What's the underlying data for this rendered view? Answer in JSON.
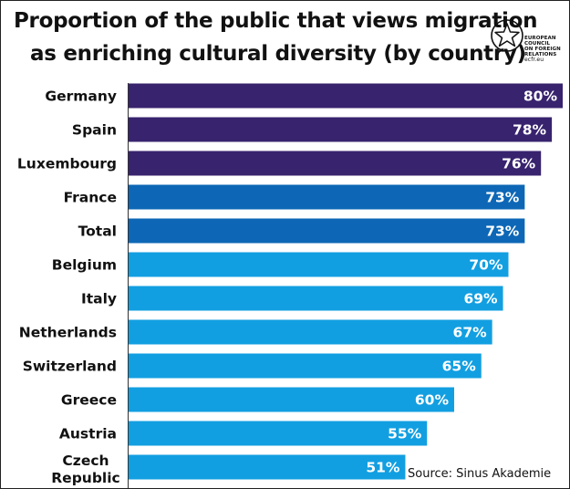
{
  "header": {
    "title_line1": "Proportion of the public that views migration",
    "title_line2": "as enriching cultural diversity (by country)"
  },
  "logo": {
    "icon": "star-circle-icon",
    "line1": "EUROPEAN",
    "line2": "COUNCIL",
    "line3": "ON FOREIGN",
    "line4": "RELATIONS",
    "site": "ecfr.eu"
  },
  "source": "Source: Sinus Akademie",
  "colors": {
    "dark": "#38236e",
    "mid": "#0d67b6",
    "light": "#129fe1"
  },
  "chart_data": {
    "type": "bar",
    "orientation": "horizontal",
    "title": "Proportion of the public that views migration as enriching cultural diversity (by country)",
    "categories": [
      "Germany",
      "Spain",
      "Luxembourg",
      "France",
      "Total",
      "Belgium",
      "Italy",
      "Netherlands",
      "Switzerland",
      "Greece",
      "Austria",
      "Czech Republic"
    ],
    "category_lines": [
      [
        "Germany"
      ],
      [
        "Spain"
      ],
      [
        "Luxembourg"
      ],
      [
        "France"
      ],
      [
        "Total"
      ],
      [
        "Belgium"
      ],
      [
        "Italy"
      ],
      [
        "Netherlands"
      ],
      [
        "Switzerland"
      ],
      [
        "Greece"
      ],
      [
        "Austria"
      ],
      [
        "Czech",
        "Republic"
      ]
    ],
    "values": [
      80,
      78,
      76,
      73,
      73,
      70,
      69,
      67,
      65,
      60,
      55,
      51
    ],
    "value_labels": [
      "80%",
      "78%",
      "76%",
      "73%",
      "73%",
      "70%",
      "69%",
      "67%",
      "65%",
      "60%",
      "55%",
      "51%"
    ],
    "color_groups": [
      "dark",
      "dark",
      "dark",
      "mid",
      "mid",
      "light",
      "light",
      "light",
      "light",
      "light",
      "light",
      "light"
    ],
    "xlim": [
      0,
      80
    ],
    "grid": false,
    "legend": "none"
  }
}
